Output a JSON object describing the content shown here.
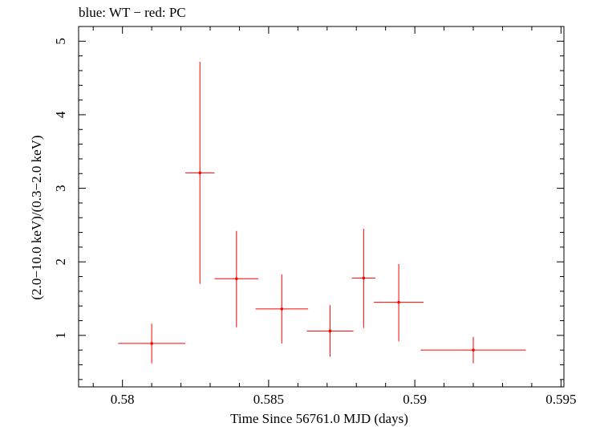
{
  "chart_data": {
    "type": "scatter",
    "title": "blue: WT − red: PC",
    "xlabel": "Time Since 56761.0 MJD (days)",
    "ylabel": "(2.0−10.0 keV)/(0.3−2.0 keV)",
    "xlim": [
      0.5785,
      0.5951
    ],
    "ylim": [
      0.3,
      5.2
    ],
    "x_ticks": [
      0.58,
      0.585,
      0.59,
      0.595
    ],
    "x_tick_labels": [
      "0.58",
      "0.585",
      "0.59",
      "0.595"
    ],
    "y_ticks": [
      1,
      2,
      3,
      4,
      5
    ],
    "y_tick_labels": [
      "1",
      "2",
      "3",
      "4",
      "5"
    ],
    "grid": false,
    "series": [
      {
        "name": "PC",
        "color": "#ff0000",
        "points": [
          {
            "x": 0.581,
            "y": 0.89,
            "xerr_lo": 0.00115,
            "xerr_hi": 0.00115,
            "yerr_lo": 0.27,
            "yerr_hi": 0.27
          },
          {
            "x": 0.58265,
            "y": 3.21,
            "xerr_lo": 0.0005,
            "xerr_hi": 0.0005,
            "yerr_lo": 1.51,
            "yerr_hi": 1.51
          },
          {
            "x": 0.5839,
            "y": 1.77,
            "xerr_lo": 0.00075,
            "xerr_hi": 0.00075,
            "yerr_lo": 0.66,
            "yerr_hi": 0.65
          },
          {
            "x": 0.58545,
            "y": 1.36,
            "xerr_lo": 0.0009,
            "xerr_hi": 0.0009,
            "yerr_lo": 0.47,
            "yerr_hi": 0.47
          },
          {
            "x": 0.5871,
            "y": 1.06,
            "xerr_lo": 0.0008,
            "xerr_hi": 0.0008,
            "yerr_lo": 0.35,
            "yerr_hi": 0.35
          },
          {
            "x": 0.58825,
            "y": 1.78,
            "xerr_lo": 0.0004,
            "xerr_hi": 0.0004,
            "yerr_lo": 0.68,
            "yerr_hi": 0.67
          },
          {
            "x": 0.58945,
            "y": 1.45,
            "xerr_lo": 0.00085,
            "xerr_hi": 0.00085,
            "yerr_lo": 0.53,
            "yerr_hi": 0.52
          },
          {
            "x": 0.592,
            "y": 0.8,
            "xerr_lo": 0.0018,
            "xerr_hi": 0.0018,
            "yerr_lo": 0.18,
            "yerr_hi": 0.18
          }
        ]
      }
    ]
  }
}
